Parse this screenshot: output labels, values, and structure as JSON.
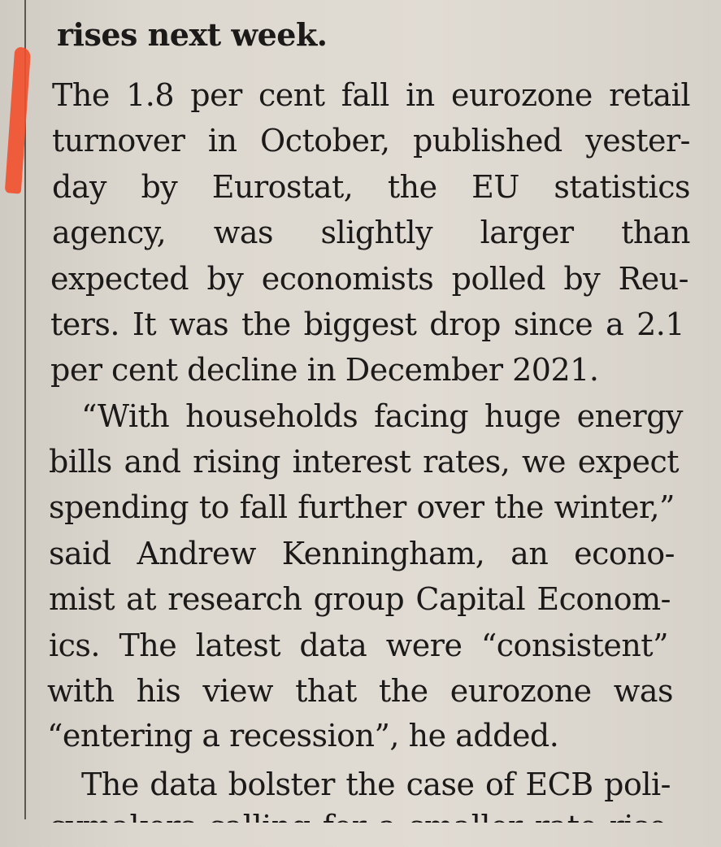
{
  "article": {
    "lines": [
      "rises next week.",
      "The 1.8 per cent fall in eurozone retail",
      "turnover in October, published yester-",
      "day by Eurostat, the EU statistics",
      "agency, was slightly larger than",
      "expected by economists polled by Reu-",
      "ters. It was the biggest drop since a 2.1",
      "per cent decline in December 2021.",
      "“With households facing huge energy",
      "bills and rising interest rates, we expect",
      "spending to fall further over the winter,”",
      "said Andrew Kenningham, an econo-",
      "mist at research group Capital Econom-",
      "ics. The latest data were “consistent”",
      "with his view that the eurozone was",
      "“entering a recession”, he added.",
      "The data bolster the case of ECB poli-",
      "cymakers calling for a smaller rate rise"
    ]
  },
  "colors": {
    "marker": "#f2502c",
    "paper": "#dcd7cf"
  }
}
